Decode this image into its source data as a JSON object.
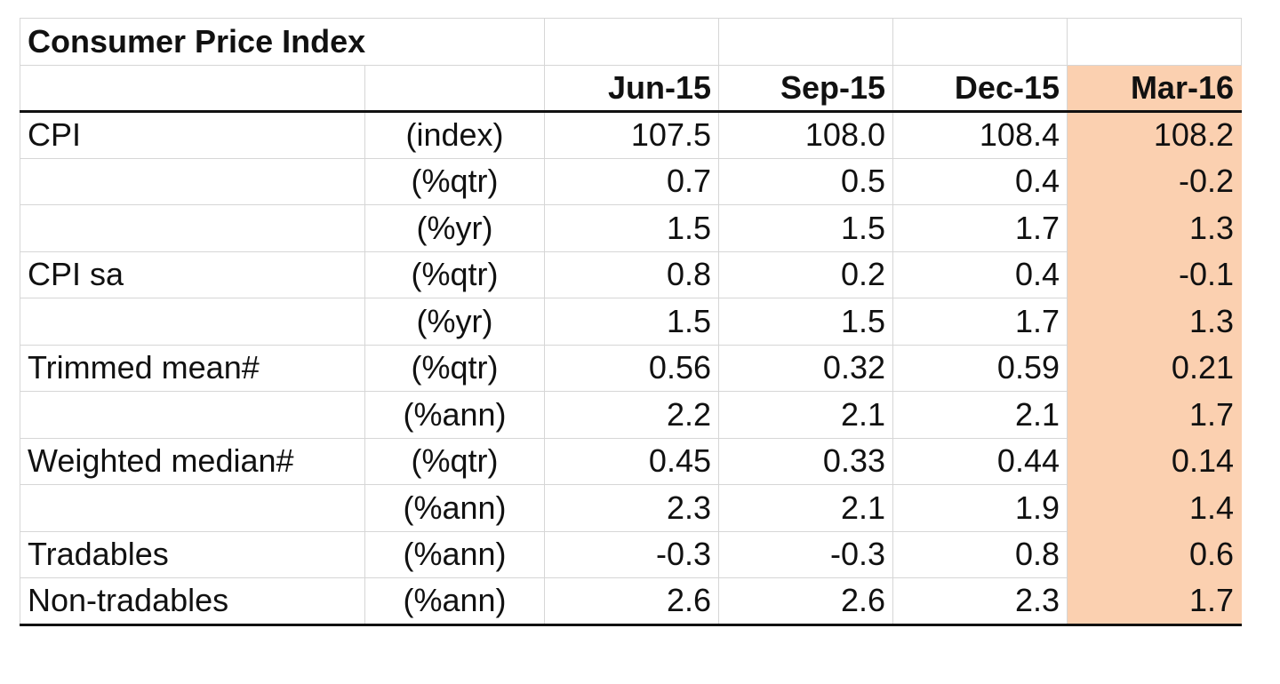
{
  "table": {
    "title": "Consumer Price Index",
    "periods": [
      "Jun-15",
      "Sep-15",
      "Dec-15",
      "Mar-16"
    ],
    "highlight_color": "#fbd0b0",
    "rows": [
      {
        "label": "CPI",
        "unit": "(index)",
        "values": [
          "107.5",
          "108.0",
          "108.4",
          "108.2"
        ]
      },
      {
        "label": "",
        "unit": "(%qtr)",
        "values": [
          "0.7",
          "0.5",
          "0.4",
          "-0.2"
        ]
      },
      {
        "label": "",
        "unit": "(%yr)",
        "values": [
          "1.5",
          "1.5",
          "1.7",
          "1.3"
        ]
      },
      {
        "label": "CPI sa",
        "unit": "(%qtr)",
        "values": [
          "0.8",
          "0.2",
          "0.4",
          "-0.1"
        ]
      },
      {
        "label": "",
        "unit": "(%yr)",
        "values": [
          "1.5",
          "1.5",
          "1.7",
          "1.3"
        ]
      },
      {
        "label": "Trimmed mean#",
        "unit": "(%qtr)",
        "values": [
          "0.56",
          "0.32",
          "0.59",
          "0.21"
        ]
      },
      {
        "label": "",
        "unit": "(%ann)",
        "values": [
          "2.2",
          "2.1",
          "2.1",
          "1.7"
        ]
      },
      {
        "label": "Weighted median#",
        "unit": "(%qtr)",
        "values": [
          "0.45",
          "0.33",
          "0.44",
          "0.14"
        ]
      },
      {
        "label": "",
        "unit": "(%ann)",
        "values": [
          "2.3",
          "2.1",
          "1.9",
          "1.4"
        ]
      },
      {
        "label": "Tradables",
        "unit": "(%ann)",
        "values": [
          "-0.3",
          "-0.3",
          "0.8",
          "0.6"
        ]
      },
      {
        "label": "Non-tradables",
        "unit": "(%ann)",
        "values": [
          "2.6",
          "2.6",
          "2.3",
          "1.7"
        ]
      }
    ]
  }
}
